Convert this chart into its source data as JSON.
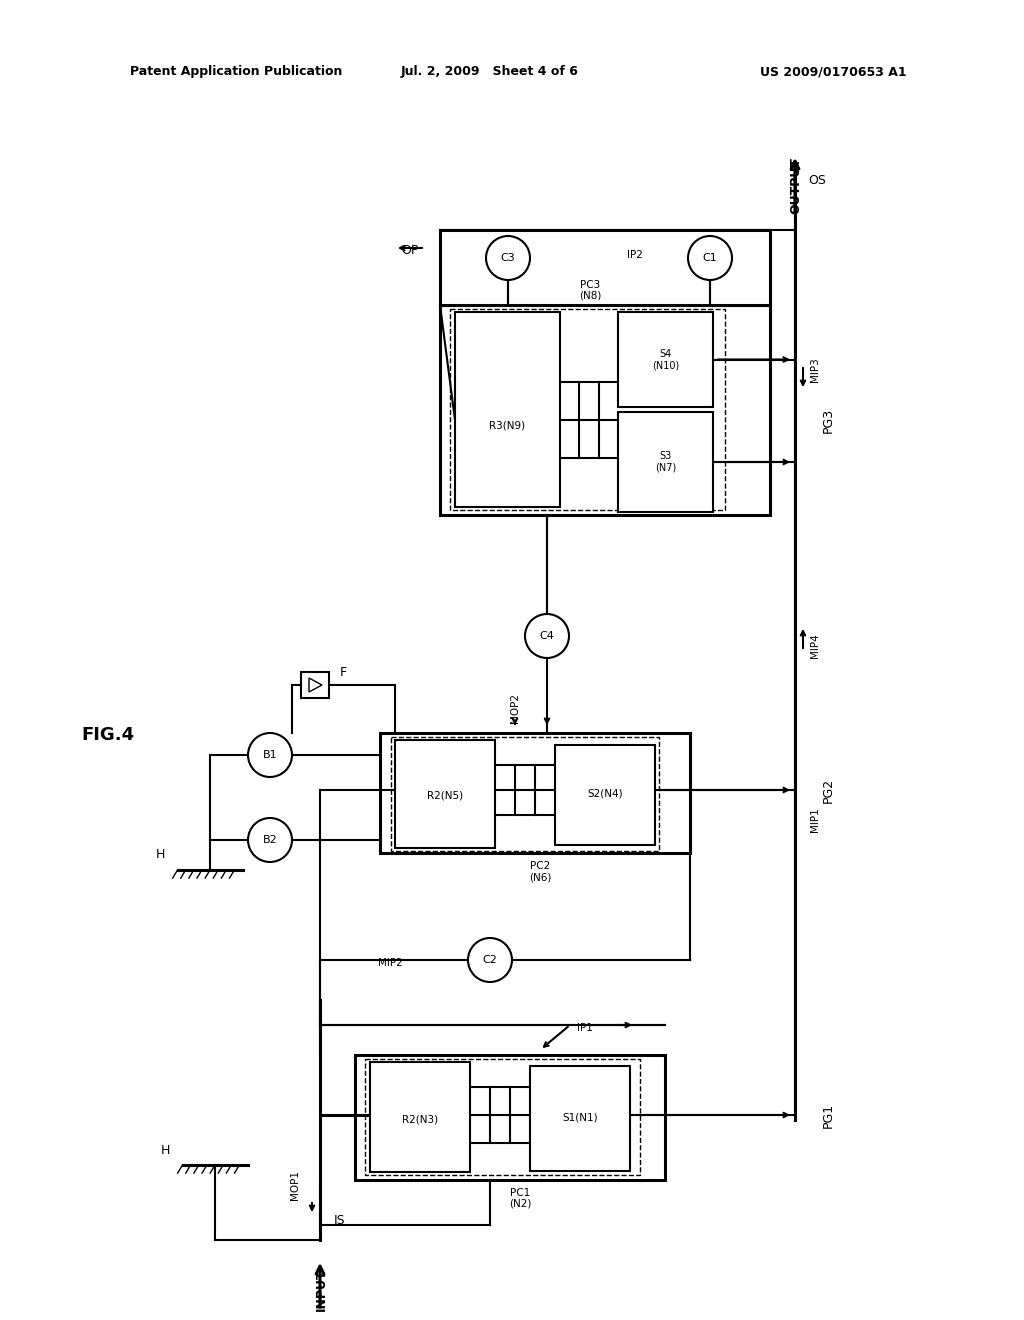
{
  "bg_color": "#ffffff",
  "lc": "#000000",
  "header_left": "Patent Application Publication",
  "header_mid": "Jul. 2, 2009   Sheet 4 of 6",
  "header_right": "US 2009/0170653 A1",
  "fig_label": "FIG.4",
  "fig_width": 10.24,
  "fig_height": 13.2
}
